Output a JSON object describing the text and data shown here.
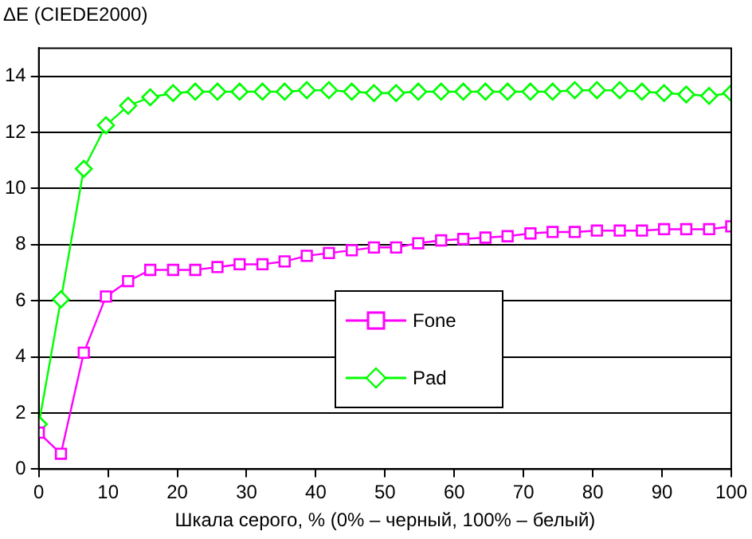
{
  "chart_data": {
    "type": "line",
    "ylabel": "ΔE (CIEDE2000)",
    "xlabel": "Шкала серого, % (0% – черный, 100% – белый)",
    "x": [
      0,
      3.2,
      6.5,
      9.7,
      12.9,
      16.1,
      19.4,
      22.6,
      25.8,
      29.0,
      32.3,
      35.5,
      38.7,
      41.9,
      45.2,
      48.4,
      51.6,
      54.8,
      58.1,
      61.3,
      64.5,
      67.7,
      71.0,
      74.2,
      77.4,
      80.6,
      83.9,
      87.1,
      90.3,
      93.5,
      96.8,
      100
    ],
    "series": [
      {
        "name": "Fone",
        "color": "#ff00ff",
        "marker": "square",
        "values": [
          1.3,
          0.55,
          4.15,
          6.15,
          6.7,
          7.1,
          7.1,
          7.1,
          7.2,
          7.3,
          7.3,
          7.4,
          7.6,
          7.7,
          7.8,
          7.9,
          7.9,
          8.05,
          8.15,
          8.2,
          8.25,
          8.3,
          8.4,
          8.45,
          8.45,
          8.5,
          8.5,
          8.5,
          8.55,
          8.55,
          8.55,
          8.65
        ]
      },
      {
        "name": "Pad",
        "color": "#00ff00",
        "marker": "diamond",
        "values": [
          1.6,
          6.05,
          10.7,
          12.25,
          12.95,
          13.25,
          13.4,
          13.45,
          13.45,
          13.45,
          13.45,
          13.45,
          13.5,
          13.5,
          13.45,
          13.4,
          13.4,
          13.45,
          13.45,
          13.45,
          13.45,
          13.45,
          13.45,
          13.45,
          13.5,
          13.5,
          13.5,
          13.45,
          13.4,
          13.35,
          13.3,
          13.4
        ]
      }
    ],
    "xlim": [
      0,
      100
    ],
    "xticks": [
      0,
      10,
      20,
      30,
      40,
      50,
      60,
      70,
      80,
      90,
      100
    ],
    "ylim": [
      0,
      15
    ],
    "yticks": [
      0,
      2,
      4,
      6,
      8,
      10,
      12,
      14
    ],
    "grid": "y",
    "legend": "center"
  }
}
